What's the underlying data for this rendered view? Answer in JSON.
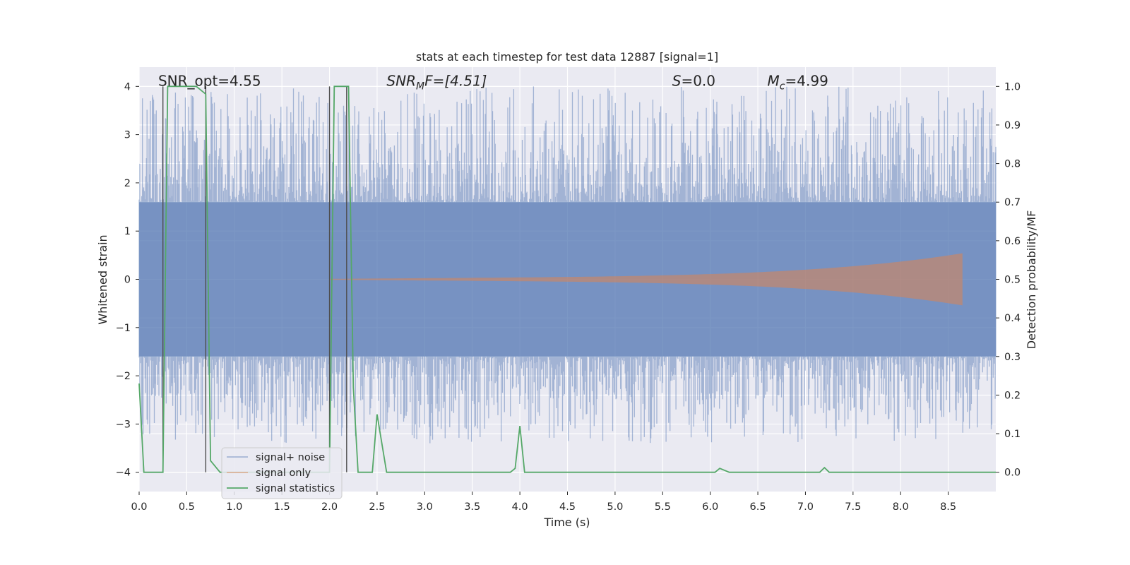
{
  "chart_data": {
    "type": "line",
    "title": "stats at each timestep for test data 12887 [signal=1]",
    "xlabel": "Time (s)",
    "ylabel_left": "Whitened strain",
    "ylabel_right": "Detection probability/MF",
    "xlim": [
      0,
      9
    ],
    "ylim_left": [
      -4.4,
      4.4
    ],
    "ylim_right": [
      -0.05,
      1.05
    ],
    "x_ticks": [
      "0.0",
      "0.5",
      "1.0",
      "1.5",
      "2.0",
      "2.5",
      "3.0",
      "3.5",
      "4.0",
      "4.5",
      "5.0",
      "5.5",
      "6.0",
      "6.5",
      "7.0",
      "7.5",
      "8.0",
      "8.5"
    ],
    "y_left_ticks": [
      "4",
      "3",
      "2",
      "1",
      "0",
      "−1",
      "−2",
      "−3",
      "−4"
    ],
    "y_right_ticks": [
      "1.0",
      "0.9",
      "0.8",
      "0.7",
      "0.6",
      "0.5",
      "0.4",
      "0.3",
      "0.2",
      "0.1",
      "0.0"
    ],
    "grid": true,
    "legend_position": "lower-left",
    "annotations": [
      {
        "text": "SNR_opt=4.55",
        "x": 0.2,
        "y": 4.0
      },
      {
        "text": "SNR",
        "sub": "M",
        "tail": "F=[4.51]",
        "italic": true,
        "x": 2.6,
        "y": 4.0
      },
      {
        "text": "S",
        "tail": "=0.0",
        "italic": true,
        "x": 5.6,
        "y": 4.0
      },
      {
        "text": "M",
        "sub": "c",
        "tail": "=4.99",
        "italic": true,
        "x": 6.6,
        "y": 4.0
      }
    ],
    "vlines": [
      0.25,
      0.7,
      2.0,
      2.18
    ],
    "series": [
      {
        "name": "signal+ noise",
        "color": "#4c72b0",
        "noise_envelope": {
          "core_upper": 1.6,
          "core_lower": -1.6,
          "peak_upper_max": 4.0,
          "peak_lower_min": -3.4
        }
      },
      {
        "name": "signal only",
        "color": "#dd8452",
        "chirp": {
          "t_start": 2.0,
          "t_end": 8.65,
          "amp_start": 0.01,
          "amp_end": 0.45
        }
      },
      {
        "name": "signal statistics",
        "color": "#55a868",
        "axis": "right",
        "x": [
          0.0,
          0.05,
          0.25,
          0.3,
          0.6,
          0.7,
          0.75,
          0.85,
          2.0,
          2.05,
          2.1,
          2.2,
          2.25,
          2.3,
          2.35,
          2.45,
          2.5,
          2.6,
          3.9,
          3.95,
          4.0,
          4.05,
          6.05,
          6.1,
          6.2,
          7.15,
          7.2,
          7.25,
          9.0
        ],
        "y": [
          0.23,
          0.0,
          0.0,
          1.0,
          1.0,
          0.98,
          0.03,
          0.0,
          0.0,
          1.0,
          1.0,
          1.0,
          0.22,
          0.0,
          0.0,
          0.0,
          0.15,
          0.0,
          0.0,
          0.01,
          0.12,
          0.0,
          0.0,
          0.01,
          0.0,
          0.0,
          0.012,
          0.0,
          0.0
        ]
      }
    ]
  }
}
